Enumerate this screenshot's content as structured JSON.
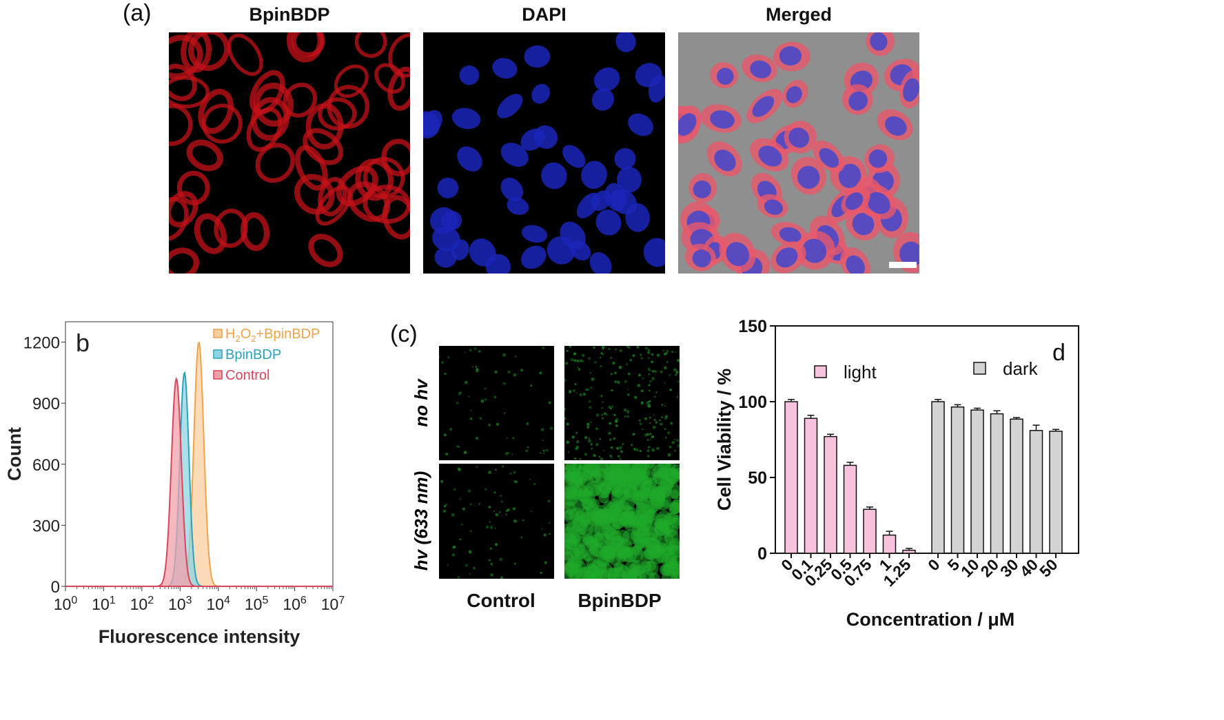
{
  "panel_a": {
    "label": "(a)",
    "images": [
      {
        "title": "BpinBDP",
        "channel": "red"
      },
      {
        "title": "DAPI",
        "channel": "blue"
      },
      {
        "title": "Merged",
        "channel": "merged"
      }
    ]
  },
  "panel_c": {
    "label": "(c)",
    "row_labels": [
      "no hv",
      "hv (633 nm)"
    ],
    "col_labels": [
      "Control",
      "BpinBDP"
    ]
  },
  "chart_data": [
    {
      "panel": "b",
      "type": "area",
      "label": "b",
      "xlabel": "Fluorescence intensity",
      "ylabel": "Count",
      "xscale": "log",
      "xlim": [
        1,
        10000000
      ],
      "ylim": [
        0,
        1300
      ],
      "x_ticks": [
        "10^0",
        "10^1",
        "10^2",
        "10^3",
        "10^4",
        "10^5",
        "10^6",
        "10^7"
      ],
      "y_ticks": [
        0,
        300,
        600,
        900,
        1200
      ],
      "legend_position": "top-right",
      "series": [
        {
          "name": "H2O2+BpinBDP",
          "color": "#f2a24a",
          "fill": "#f9cfa0",
          "peak_x": 3100,
          "peak_count": 1200
        },
        {
          "name": "BpinBDP",
          "color": "#2ba3bd",
          "fill": "#8fd4e2",
          "peak_x": 1300,
          "peak_count": 1050
        },
        {
          "name": "Control",
          "color": "#d9455b",
          "fill": "#f0a0ab",
          "peak_x": 800,
          "peak_count": 1020
        }
      ]
    },
    {
      "panel": "d",
      "type": "bar",
      "label": "d",
      "xlabel": "Concentration / μM",
      "ylabel": "Cell Viability / %",
      "ylim": [
        0,
        150
      ],
      "y_ticks": [
        0,
        50,
        100,
        150
      ],
      "legend_position": "top",
      "series": [
        {
          "name": "light",
          "color": "#f8c3dc",
          "categories": [
            "0",
            "0.1",
            "0.25",
            "0.5",
            "0.75",
            "1",
            "1.25"
          ],
          "values": [
            100,
            89,
            77,
            58,
            29,
            12,
            2
          ],
          "errors": [
            1.5,
            2,
            1.5,
            2,
            1.5,
            2.5,
            1.2
          ]
        },
        {
          "name": "dark",
          "color": "#d3d3d3",
          "categories": [
            "0",
            "5",
            "10",
            "20",
            "30",
            "40",
            "50"
          ],
          "values": [
            100,
            96.5,
            94.5,
            92,
            88.5,
            81,
            80.5
          ],
          "errors": [
            1.5,
            1.5,
            1.2,
            2,
            1,
            3.5,
            1.2
          ]
        }
      ]
    }
  ]
}
